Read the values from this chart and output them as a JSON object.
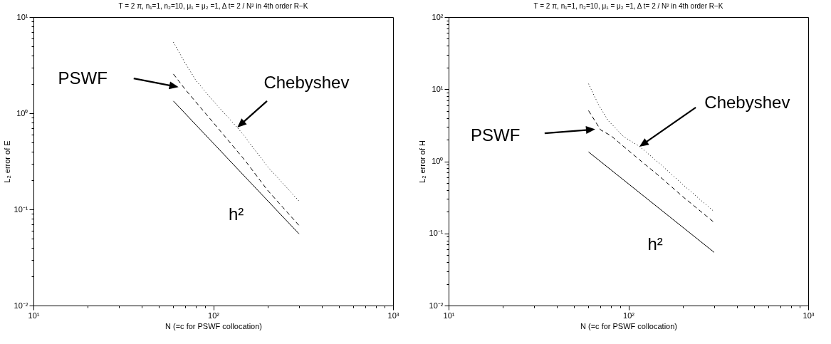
{
  "chart_data": [
    {
      "type": "line",
      "title": "T = 2 π, n₁=1,  n₂=10,   μ₁ = μ₂ =1,   Δ t= 2 / N² in 4th order R−K",
      "xlabel": "N (=c for PSWF collocation)",
      "ylabel": "L₂ error of E",
      "log": "xy",
      "xlim": [
        10,
        1000
      ],
      "ylim": [
        0.01,
        10
      ],
      "xticks": [
        {
          "value": 10,
          "label": "10¹"
        },
        {
          "value": 20,
          "label": null
        },
        {
          "value": 30,
          "label": null
        },
        {
          "value": 40,
          "label": null
        },
        {
          "value": 50,
          "label": null
        },
        {
          "value": 60,
          "label": null
        },
        {
          "value": 70,
          "label": null
        },
        {
          "value": 80,
          "label": null
        },
        {
          "value": 90,
          "label": null
        },
        {
          "value": 100,
          "label": "10²"
        },
        {
          "value": 200,
          "label": null
        },
        {
          "value": 300,
          "label": null
        },
        {
          "value": 400,
          "label": null
        },
        {
          "value": 500,
          "label": null
        },
        {
          "value": 600,
          "label": null
        },
        {
          "value": 700,
          "label": null
        },
        {
          "value": 800,
          "label": null
        },
        {
          "value": 900,
          "label": null
        },
        {
          "value": 1000,
          "label": "10³"
        }
      ],
      "yticks": [
        {
          "value": 0.01,
          "label": "10⁻²"
        },
        {
          "value": 0.02,
          "label": null
        },
        {
          "value": 0.03,
          "label": null
        },
        {
          "value": 0.04,
          "label": null
        },
        {
          "value": 0.05,
          "label": null
        },
        {
          "value": 0.06,
          "label": null
        },
        {
          "value": 0.07,
          "label": null
        },
        {
          "value": 0.08,
          "label": null
        },
        {
          "value": 0.09,
          "label": null
        },
        {
          "value": 0.1,
          "label": "10⁻¹"
        },
        {
          "value": 0.2,
          "label": null
        },
        {
          "value": 0.3,
          "label": null
        },
        {
          "value": 0.4,
          "label": null
        },
        {
          "value": 0.5,
          "label": null
        },
        {
          "value": 0.6,
          "label": null
        },
        {
          "value": 0.7,
          "label": null
        },
        {
          "value": 0.8,
          "label": null
        },
        {
          "value": 0.9,
          "label": null
        },
        {
          "value": 1,
          "label": "10⁰"
        },
        {
          "value": 2,
          "label": null
        },
        {
          "value": 3,
          "label": null
        },
        {
          "value": 4,
          "label": null
        },
        {
          "value": 5,
          "label": null
        },
        {
          "value": 6,
          "label": null
        },
        {
          "value": 7,
          "label": null
        },
        {
          "value": 8,
          "label": null
        },
        {
          "value": 9,
          "label": null
        },
        {
          "value": 10,
          "label": "10¹"
        }
      ],
      "series": [
        {
          "color": "#000000",
          "line_style": "solid",
          "x": [
            60,
            300
          ],
          "values": [
            1.34,
            0.0556
          ]
        },
        {
          "color": "#000000",
          "line_style": "dashed",
          "x": [
            60,
            70,
            100,
            150,
            200,
            300
          ],
          "values": [
            2.56,
            1.76,
            0.8,
            0.324,
            0.159,
            0.068
          ]
        },
        {
          "color": "#000000",
          "line_style": "dotted",
          "x": [
            60,
            70,
            80,
            100,
            136,
            150,
            200,
            300
          ],
          "values": [
            5.5,
            3.3,
            2.2,
            1.34,
            0.71,
            0.57,
            0.28,
            0.122
          ]
        }
      ],
      "annotations": [
        "PSWF",
        "Chebyshev",
        "h²"
      ]
    },
    {
      "type": "line",
      "title": "T = 2 π, n₁=1,  n₂=10,   μ₁ = μ₂ =1,   Δ t= 2 / N² in 4th order  R−K",
      "xlabel": "N (=c for PSWF collocation)",
      "ylabel": "L₂ error of H",
      "log": "xy",
      "xlim": [
        10,
        1000
      ],
      "ylim": [
        0.01,
        100
      ],
      "xticks": [
        {
          "value": 10,
          "label": "10¹"
        },
        {
          "value": 20,
          "label": null
        },
        {
          "value": 30,
          "label": null
        },
        {
          "value": 40,
          "label": null
        },
        {
          "value": 50,
          "label": null
        },
        {
          "value": 60,
          "label": null
        },
        {
          "value": 70,
          "label": null
        },
        {
          "value": 80,
          "label": null
        },
        {
          "value": 90,
          "label": null
        },
        {
          "value": 100,
          "label": "10²"
        },
        {
          "value": 200,
          "label": null
        },
        {
          "value": 300,
          "label": null
        },
        {
          "value": 400,
          "label": null
        },
        {
          "value": 500,
          "label": null
        },
        {
          "value": 600,
          "label": null
        },
        {
          "value": 700,
          "label": null
        },
        {
          "value": 800,
          "label": null
        },
        {
          "value": 900,
          "label": null
        },
        {
          "value": 1000,
          "label": "10³"
        }
      ],
      "yticks": [
        {
          "value": 0.01,
          "label": "10⁻²"
        },
        {
          "value": 0.02,
          "label": null
        },
        {
          "value": 0.03,
          "label": null
        },
        {
          "value": 0.04,
          "label": null
        },
        {
          "value": 0.05,
          "label": null
        },
        {
          "value": 0.06,
          "label": null
        },
        {
          "value": 0.07,
          "label": null
        },
        {
          "value": 0.08,
          "label": null
        },
        {
          "value": 0.09,
          "label": null
        },
        {
          "value": 0.1,
          "label": "10⁻¹"
        },
        {
          "value": 0.2,
          "label": null
        },
        {
          "value": 0.3,
          "label": null
        },
        {
          "value": 0.4,
          "label": null
        },
        {
          "value": 0.5,
          "label": null
        },
        {
          "value": 0.6,
          "label": null
        },
        {
          "value": 0.7,
          "label": null
        },
        {
          "value": 0.8,
          "label": null
        },
        {
          "value": 0.9,
          "label": null
        },
        {
          "value": 1,
          "label": "10⁰"
        },
        {
          "value": 2,
          "label": null
        },
        {
          "value": 3,
          "label": null
        },
        {
          "value": 4,
          "label": null
        },
        {
          "value": 5,
          "label": null
        },
        {
          "value": 6,
          "label": null
        },
        {
          "value": 7,
          "label": null
        },
        {
          "value": 8,
          "label": null
        },
        {
          "value": 9,
          "label": null
        },
        {
          "value": 10,
          "label": "10¹"
        },
        {
          "value": 20,
          "label": null
        },
        {
          "value": 30,
          "label": null
        },
        {
          "value": 40,
          "label": null
        },
        {
          "value": 50,
          "label": null
        },
        {
          "value": 60,
          "label": null
        },
        {
          "value": 70,
          "label": null
        },
        {
          "value": 80,
          "label": null
        },
        {
          "value": 90,
          "label": null
        },
        {
          "value": 100,
          "label": "10²"
        }
      ],
      "series": [
        {
          "color": "#000000",
          "line_style": "solid",
          "x": [
            60,
            300
          ],
          "values": [
            1.35,
            0.0546
          ]
        },
        {
          "color": "#000000",
          "line_style": "dashed",
          "x": [
            60,
            70,
            80,
            100,
            150,
            200,
            300
          ],
          "values": [
            5.05,
            2.73,
            2.26,
            1.41,
            0.61,
            0.326,
            0.142
          ]
        },
        {
          "color": "#000000",
          "line_style": "dotted",
          "x": [
            60,
            68,
            77,
            94,
            115,
            150,
            200,
            300
          ],
          "values": [
            11.9,
            6.2,
            3.7,
            2.2,
            1.62,
            0.92,
            0.48,
            0.2
          ]
        }
      ],
      "annotations": [
        "PSWF",
        "Chebyshev",
        "h²"
      ]
    }
  ]
}
